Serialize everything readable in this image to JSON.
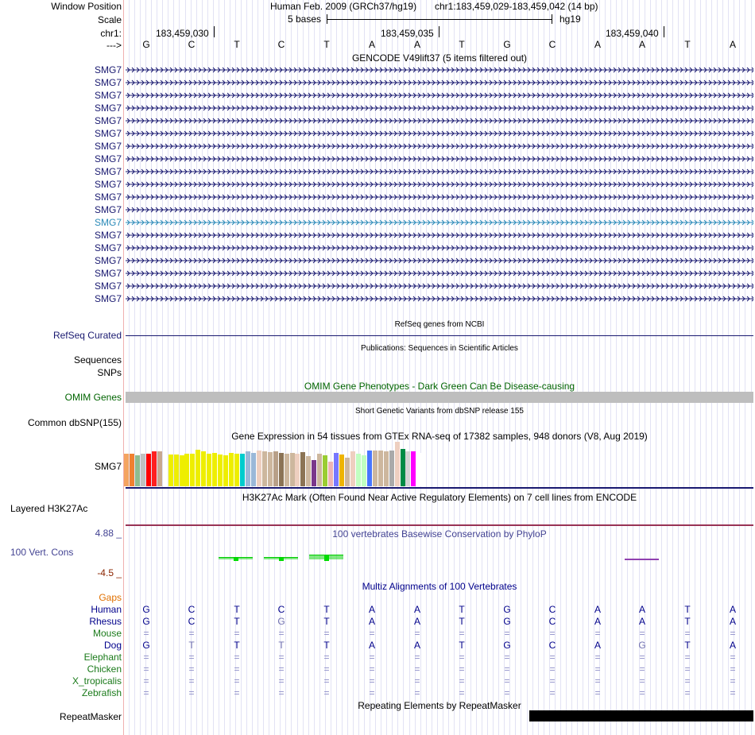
{
  "header": {
    "window_position_label": "Window Position",
    "scale_label": "Scale",
    "chrom_label": "chr1:",
    "strand_label": "--->",
    "assembly_text": "Human Feb. 2009 (GRCh37/hg19)",
    "position_text": "chr1:183,459,029-183,459,042 (14 bp)",
    "scale_text": "5 bases",
    "db_text": "hg19",
    "ticks": [
      "183,459,030",
      "183,459,035",
      "183,459,040"
    ]
  },
  "sequence": [
    "G",
    "C",
    "T",
    "C",
    "T",
    "A",
    "A",
    "T",
    "G",
    "C",
    "A",
    "A",
    "T",
    "A"
  ],
  "gencode": {
    "title": "GENCODE V49lift37 (5 items filtered out)",
    "gene_names": [
      "SMG7",
      "SMG7",
      "SMG7",
      "SMG7",
      "SMG7",
      "SMG7",
      "SMG7",
      "SMG7",
      "SMG7",
      "SMG7",
      "SMG7",
      "SMG7",
      "SMG7",
      "SMG7",
      "SMG7",
      "SMG7",
      "SMG7",
      "SMG7",
      "SMG7"
    ],
    "highlighted_index": 12,
    "color": "#191970",
    "highlight_color": "#2a8ab8"
  },
  "refseq": {
    "title": "RefSeq genes from NCBI",
    "label": "RefSeq Curated",
    "color": "#191970"
  },
  "publications": {
    "title": "Publications: Sequences in Scientific Articles",
    "labels": [
      "Sequences",
      "SNPs"
    ]
  },
  "omim": {
    "title": "OMIM Gene Phenotypes - Dark Green Can Be Disease-causing",
    "label": "OMIM Genes",
    "color": "#006400",
    "bar_color": "#bebebe"
  },
  "dbsnp": {
    "title": "Short Genetic Variants from dbSNP release 155",
    "label": "Common dbSNP(155)"
  },
  "gtex": {
    "title": "Gene Expression in 54 tissues from GTEx RNA-seq of 17382 samples, 948 donors (V8, Aug 2019)",
    "label": "SMG7",
    "levels": [
      0.92,
      0.9,
      0.87,
      0.9,
      0.9,
      0.98,
      0.97,
      0.94,
      0.88,
      0.88,
      0.87,
      0.9,
      0.9,
      1.02,
      0.97,
      0.9,
      0.93,
      0.88,
      0.87,
      0.94,
      0.92,
      0.9,
      0.97,
      0.94,
      1.0,
      0.98,
      0.95,
      0.97,
      0.93,
      0.92,
      0.94,
      0.92,
      0.95,
      0.85,
      0.74,
      0.9,
      0.86,
      0.7,
      0.94,
      0.88,
      0.79,
      0.97,
      0.9,
      0.87,
      1.0,
      0.99,
      0.99,
      0.97,
      1.0,
      1.25,
      1.04,
      0.98,
      0.98,
      0.93
    ],
    "colors": [
      "#f4a460",
      "#f08030",
      "#8fbc8f",
      "#c0c0c0",
      "#ff0000",
      "#ff2020",
      "#c8a890",
      "#ffffff",
      "#eeee00",
      "#eeee00",
      "#eeee00",
      "#eeee00",
      "#eeee00",
      "#eeee00",
      "#eeee00",
      "#eeee00",
      "#eeee00",
      "#eeee00",
      "#eeee00",
      "#eeee00",
      "#eeee00",
      "#00cccc",
      "#9ab8d8",
      "#9ab8d8",
      "#eecfc0",
      "#cdb79e",
      "#cdb79e",
      "#b8a088",
      "#8b7355",
      "#cdb79e",
      "#cdb79e",
      "#eecfc0",
      "#8b7355",
      "#cdb79e",
      "#7a378b",
      "#cdb79e",
      "#9acd32",
      "#eeb4b4",
      "#7777ff",
      "#eeb400",
      "#cdb79e",
      "#eecfc0",
      "#c1ffc1",
      "#c1ffc1",
      "#4876ff",
      "#cdb79e",
      "#cdb79e",
      "#cdb79e",
      "#aaaaaa",
      "#eecfc0",
      "#008b45",
      "#d3d3d3",
      "#ff00ff",
      "#ffffff"
    ]
  },
  "h3k27ac": {
    "title": "H3K27Ac Mark (Often Found Near Active Regulatory Elements) on 7 cell lines from ENCODE",
    "label": "Layered H3K27Ac"
  },
  "cons": {
    "title": "100 vertebrates Basewise Conservation by PhyloP",
    "label": "100 Vert. Cons",
    "ymax": "4.88 _",
    "ymin": "-4.5 _",
    "color": "#1f1f8f",
    "scores": [
      0,
      0,
      0.25,
      0.08,
      0.9,
      0,
      0,
      0,
      0,
      0,
      0,
      -0.12,
      0,
      0
    ]
  },
  "multiz": {
    "title": "Multiz Alignments of 100 Vertebrates",
    "gaps_label": "Gaps",
    "species": [
      {
        "name": "Human",
        "bases": [
          "G",
          "C",
          "T",
          "C",
          "T",
          "A",
          "A",
          "T",
          "G",
          "C",
          "A",
          "A",
          "T",
          "A"
        ]
      },
      {
        "name": "Rhesus",
        "bases": [
          "G",
          "C",
          "T",
          "G",
          "T",
          "A",
          "A",
          "T",
          "G",
          "C",
          "A",
          "A",
          "T",
          "A"
        ]
      },
      {
        "name": "Mouse",
        "bases": [
          "=",
          "=",
          "=",
          "=",
          "=",
          "=",
          "=",
          "=",
          "=",
          "=",
          "=",
          "=",
          "=",
          "="
        ]
      },
      {
        "name": "Dog",
        "bases": [
          "G",
          "T",
          "T",
          "T",
          "T",
          "A",
          "A",
          "T",
          "G",
          "C",
          "A",
          "G",
          "T",
          "A"
        ]
      },
      {
        "name": "Elephant",
        "bases": [
          "=",
          "=",
          "=",
          "=",
          "=",
          "=",
          "=",
          "=",
          "=",
          "=",
          "=",
          "=",
          "=",
          "="
        ]
      },
      {
        "name": "Chicken",
        "bases": [
          "=",
          "=",
          "=",
          "=",
          "=",
          "=",
          "=",
          "=",
          "=",
          "=",
          "=",
          "=",
          "=",
          "="
        ]
      },
      {
        "name": "X_tropicalis",
        "bases": [
          "=",
          "=",
          "=",
          "=",
          "=",
          "=",
          "=",
          "=",
          "=",
          "=",
          "=",
          "=",
          "=",
          "="
        ]
      },
      {
        "name": "Zebrafish",
        "bases": [
          "=",
          "=",
          "=",
          "=",
          "=",
          "=",
          "=",
          "=",
          "=",
          "=",
          "=",
          "=",
          "=",
          "="
        ]
      }
    ],
    "human_colors": {
      "primary": "#00008b",
      "rhesus": "#00008b",
      "dog": "#00008b",
      "mismatch": "#7070b0",
      "other": "#8c8cc8"
    }
  },
  "repeatmasker": {
    "title": "Repeating Elements by RepeatMasker",
    "label": "RepeatMasker"
  },
  "colors": {
    "grid": "#e2e2f4",
    "navy": "#191970",
    "green": "#006400",
    "orange": "#e07000"
  }
}
